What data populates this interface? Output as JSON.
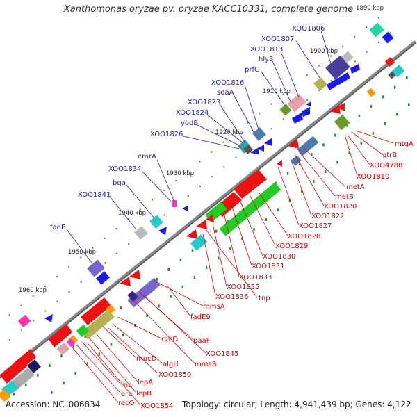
{
  "title": "Xanthomonas oryzae pv. oryzae KACC10331, complete genome",
  "footer": {
    "accession": "Accession: NC_006834",
    "summary": "Topology: circular; Length: 4,941,439 bp; Genes: 4,122"
  },
  "ticks": [
    "1890 kbp",
    "1900 kbp",
    "1910 kbp",
    "1920 kbp",
    "1930 kbp",
    "1940 kbp",
    "1950 kbp",
    "1960 kbp"
  ],
  "labels_blue": [
    "XOO1806",
    "XOO1807",
    "XOO1813",
    "hly3",
    "prfC",
    "XOO1816",
    "sdaA",
    "XOO1823",
    "XOO1824",
    "yodB",
    "XOO1826",
    "emrA",
    "XOO1834",
    "bga",
    "XOO1841",
    "fadB"
  ],
  "labels_red": [
    "mtgA",
    "gtrB",
    "XOO4788",
    "XOO1810",
    "metA",
    "metB",
    "XOO1820",
    "XOO1822",
    "XOO1827",
    "XOO1828",
    "XOO1829",
    "XOO1830",
    "XOO1831",
    "XOO1833",
    "XOO1835",
    "XOO1836",
    "tnp",
    "mmsA",
    "fadE9",
    "paaF",
    "XOO1845",
    "mmsB",
    "czcD",
    "algU",
    "mucD",
    "XOO1850",
    "lepA",
    "lepB",
    "rnc",
    "era",
    "recO",
    "XOO1854"
  ],
  "colors": {
    "backbone": "#7a7a7a",
    "blue_label": "#1b1bb0",
    "red_label": "#d30000",
    "gene_red": "#ee1111",
    "gene_green": "#22cc22",
    "gene_blue": "#1a1aee",
    "gene_purple": "#7766cc",
    "gene_cyan": "#22cccc"
  }
}
